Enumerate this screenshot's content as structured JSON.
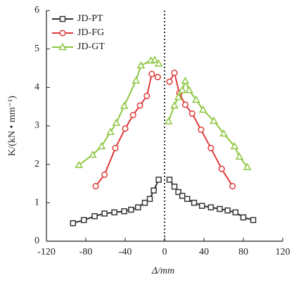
{
  "chart_data": {
    "type": "line",
    "x_label": "Δ/mm",
    "y_label": "K/(kN • mm⁻¹)",
    "xlim": [
      -120,
      120
    ],
    "xticks": [
      -120,
      -80,
      -40,
      0,
      40,
      80,
      120
    ],
    "ylim": [
      0,
      6
    ],
    "yticks": [
      0,
      1,
      2,
      3,
      4,
      5,
      6
    ],
    "zero_line": true,
    "legend": "top-left",
    "series": [
      {
        "name": "JD-PT",
        "color": "#333333",
        "marker": "square",
        "x": [
          -93,
          -82,
          -71,
          -61,
          -51,
          -41,
          -34,
          -27,
          -20,
          -15,
          -11,
          -6,
          null,
          5,
          10,
          14,
          18,
          23,
          30,
          38,
          47,
          56,
          64,
          72,
          80,
          90
        ],
        "values": [
          0.47,
          0.55,
          0.65,
          0.72,
          0.75,
          0.78,
          0.82,
          0.88,
          1.0,
          1.1,
          1.32,
          1.6,
          null,
          1.6,
          1.42,
          1.28,
          1.18,
          1.1,
          1.0,
          0.92,
          0.88,
          0.84,
          0.8,
          0.75,
          0.62,
          0.55
        ]
      },
      {
        "name": "JD-FG",
        "color": "#e03a3a",
        "marker": "circle",
        "x": [
          -70,
          -61,
          -50,
          -40,
          -32,
          -25,
          -18,
          -13,
          -7,
          null,
          5,
          10,
          15,
          21,
          28,
          37,
          47,
          58,
          69
        ],
        "values": [
          1.43,
          1.73,
          2.42,
          2.93,
          3.28,
          3.53,
          3.78,
          4.35,
          4.27,
          null,
          4.15,
          4.38,
          3.85,
          3.55,
          3.32,
          2.9,
          2.42,
          1.88,
          1.43
        ]
      },
      {
        "name": "JD-GT",
        "color": "#8dc63f",
        "marker": "triangle",
        "x": [
          -87,
          -73,
          -64,
          -55,
          -49,
          -41,
          -29,
          -24,
          -14,
          -10,
          -6,
          null,
          4,
          10,
          14,
          18,
          21,
          25,
          32,
          39,
          50,
          60,
          71,
          76,
          84
        ],
        "values": [
          1.98,
          2.25,
          2.47,
          2.84,
          3.08,
          3.52,
          4.18,
          4.57,
          4.7,
          4.72,
          4.62,
          null,
          3.12,
          3.53,
          3.75,
          3.93,
          4.17,
          3.93,
          3.68,
          3.42,
          3.13,
          2.8,
          2.47,
          2.2,
          1.93
        ]
      }
    ]
  }
}
